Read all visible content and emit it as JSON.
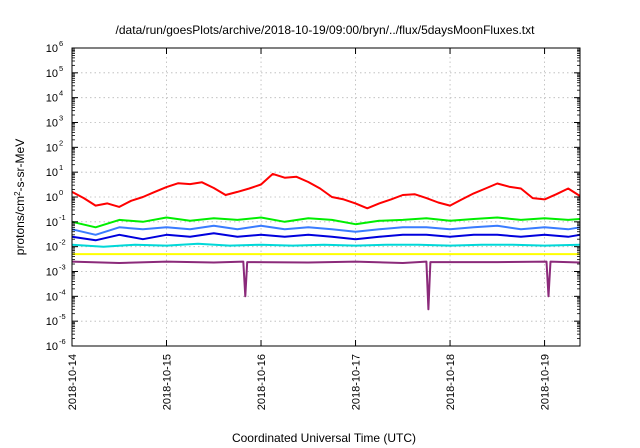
{
  "chart_data": {
    "type": "line",
    "title": "/data/run/goesPlots/archive/2018-10-19/09:00/bryn/../flux/5daysMoonFluxes.txt",
    "xlabel": "Coordinated Universal Time (UTC)",
    "ylabel": "protons/cm²-s-sr-MeV",
    "ylabel_parts": {
      "prefix": "protons/cm",
      "sup": "2",
      "suffix": "-s-sr-MeV"
    },
    "y_scale": "log",
    "ylim_exponents": [
      -6,
      6
    ],
    "y_ticks": [
      {
        "base": "10",
        "exp": "6"
      },
      {
        "base": "10",
        "exp": "5"
      },
      {
        "base": "10",
        "exp": "4"
      },
      {
        "base": "10",
        "exp": "3"
      },
      {
        "base": "10",
        "exp": "2"
      },
      {
        "base": "10",
        "exp": "1"
      },
      {
        "base": "10",
        "exp": "0"
      },
      {
        "base": "10",
        "exp": "-1"
      },
      {
        "base": "10",
        "exp": "-2"
      },
      {
        "base": "10",
        "exp": "-3"
      },
      {
        "base": "10",
        "exp": "-4"
      },
      {
        "base": "10",
        "exp": "-5"
      },
      {
        "base": "10",
        "exp": "-6"
      }
    ],
    "xlim": [
      "2018-10-14",
      "2018-10-19 09:00"
    ],
    "x_ticks": [
      "2018-10-14",
      "2018-10-15",
      "2018-10-16",
      "2018-10-17",
      "2018-10-18",
      "2018-10-19"
    ],
    "grid": true,
    "legend": "none",
    "series": [
      {
        "color": "#ff0000",
        "points": [
          [
            "2018-10-14 00:00",
            1.6
          ],
          [
            "2018-10-14 03:00",
            0.9
          ],
          [
            "2018-10-14 06:00",
            0.45
          ],
          [
            "2018-10-14 09:00",
            0.55
          ],
          [
            "2018-10-14 12:00",
            0.4
          ],
          [
            "2018-10-14 15:00",
            0.7
          ],
          [
            "2018-10-14 18:00",
            1.0
          ],
          [
            "2018-10-14 21:00",
            1.6
          ],
          [
            "2018-10-15 00:00",
            2.5
          ],
          [
            "2018-10-15 03:00",
            3.6
          ],
          [
            "2018-10-15 06:00",
            3.3
          ],
          [
            "2018-10-15 09:00",
            3.9
          ],
          [
            "2018-10-15 12:00",
            2.3
          ],
          [
            "2018-10-15 15:00",
            1.2
          ],
          [
            "2018-10-15 18:00",
            1.6
          ],
          [
            "2018-10-15 21:00",
            2.2
          ],
          [
            "2018-10-16 00:00",
            3.2
          ],
          [
            "2018-10-16 03:00",
            8.5
          ],
          [
            "2018-10-16 06:00",
            6.0
          ],
          [
            "2018-10-16 09:00",
            6.5
          ],
          [
            "2018-10-16 12:00",
            4.0
          ],
          [
            "2018-10-16 15:00",
            2.2
          ],
          [
            "2018-10-16 18:00",
            1.0
          ],
          [
            "2018-10-16 21:00",
            0.8
          ],
          [
            "2018-10-17 00:00",
            0.55
          ],
          [
            "2018-10-17 03:00",
            0.35
          ],
          [
            "2018-10-17 06:00",
            0.55
          ],
          [
            "2018-10-17 09:00",
            0.8
          ],
          [
            "2018-10-17 12:00",
            1.2
          ],
          [
            "2018-10-17 15:00",
            1.3
          ],
          [
            "2018-10-17 18:00",
            0.9
          ],
          [
            "2018-10-17 21:00",
            0.6
          ],
          [
            "2018-10-18 00:00",
            0.45
          ],
          [
            "2018-10-18 03:00",
            0.8
          ],
          [
            "2018-10-18 06:00",
            1.4
          ],
          [
            "2018-10-18 09:00",
            2.2
          ],
          [
            "2018-10-18 12:00",
            3.5
          ],
          [
            "2018-10-18 15:00",
            2.6
          ],
          [
            "2018-10-18 18:00",
            2.2
          ],
          [
            "2018-10-18 21:00",
            0.9
          ],
          [
            "2018-10-19 00:00",
            0.8
          ],
          [
            "2018-10-19 03:00",
            1.3
          ],
          [
            "2018-10-19 06:00",
            2.2
          ],
          [
            "2018-10-19 09:00",
            1.1
          ]
        ]
      },
      {
        "color": "#00ee00",
        "points": [
          [
            "2018-10-14 00:00",
            0.1
          ],
          [
            "2018-10-14 06:00",
            0.06
          ],
          [
            "2018-10-14 12:00",
            0.12
          ],
          [
            "2018-10-14 18:00",
            0.1
          ],
          [
            "2018-10-15 00:00",
            0.15
          ],
          [
            "2018-10-15 06:00",
            0.11
          ],
          [
            "2018-10-15 12:00",
            0.14
          ],
          [
            "2018-10-15 18:00",
            0.12
          ],
          [
            "2018-10-16 00:00",
            0.15
          ],
          [
            "2018-10-16 06:00",
            0.1
          ],
          [
            "2018-10-16 12:00",
            0.14
          ],
          [
            "2018-10-16 18:00",
            0.12
          ],
          [
            "2018-10-17 00:00",
            0.08
          ],
          [
            "2018-10-17 06:00",
            0.11
          ],
          [
            "2018-10-17 12:00",
            0.12
          ],
          [
            "2018-10-17 18:00",
            0.14
          ],
          [
            "2018-10-18 00:00",
            0.11
          ],
          [
            "2018-10-18 06:00",
            0.13
          ],
          [
            "2018-10-18 12:00",
            0.15
          ],
          [
            "2018-10-18 18:00",
            0.12
          ],
          [
            "2018-10-19 00:00",
            0.14
          ],
          [
            "2018-10-19 06:00",
            0.12
          ],
          [
            "2018-10-19 09:00",
            0.13
          ]
        ]
      },
      {
        "color": "#3a7cff",
        "points": [
          [
            "2018-10-14 00:00",
            0.05
          ],
          [
            "2018-10-14 06:00",
            0.03
          ],
          [
            "2018-10-14 12:00",
            0.06
          ],
          [
            "2018-10-14 18:00",
            0.05
          ],
          [
            "2018-10-15 00:00",
            0.06
          ],
          [
            "2018-10-15 06:00",
            0.05
          ],
          [
            "2018-10-15 12:00",
            0.07
          ],
          [
            "2018-10-15 18:00",
            0.05
          ],
          [
            "2018-10-16 00:00",
            0.07
          ],
          [
            "2018-10-16 06:00",
            0.05
          ],
          [
            "2018-10-16 12:00",
            0.06
          ],
          [
            "2018-10-16 18:00",
            0.05
          ],
          [
            "2018-10-17 00:00",
            0.04
          ],
          [
            "2018-10-17 06:00",
            0.05
          ],
          [
            "2018-10-17 12:00",
            0.06
          ],
          [
            "2018-10-17 18:00",
            0.06
          ],
          [
            "2018-10-18 00:00",
            0.05
          ],
          [
            "2018-10-18 06:00",
            0.06
          ],
          [
            "2018-10-18 12:00",
            0.07
          ],
          [
            "2018-10-18 18:00",
            0.05
          ],
          [
            "2018-10-19 00:00",
            0.06
          ],
          [
            "2018-10-19 06:00",
            0.05
          ],
          [
            "2018-10-19 09:00",
            0.06
          ]
        ]
      },
      {
        "color": "#0000dd",
        "points": [
          [
            "2018-10-14 00:00",
            0.025
          ],
          [
            "2018-10-14 06:00",
            0.018
          ],
          [
            "2018-10-14 12:00",
            0.03
          ],
          [
            "2018-10-14 18:00",
            0.02
          ],
          [
            "2018-10-15 00:00",
            0.03
          ],
          [
            "2018-10-15 06:00",
            0.025
          ],
          [
            "2018-10-15 12:00",
            0.035
          ],
          [
            "2018-10-15 18:00",
            0.025
          ],
          [
            "2018-10-16 00:00",
            0.03
          ],
          [
            "2018-10-16 06:00",
            0.025
          ],
          [
            "2018-10-16 12:00",
            0.03
          ],
          [
            "2018-10-16 18:00",
            0.025
          ],
          [
            "2018-10-17 00:00",
            0.02
          ],
          [
            "2018-10-17 06:00",
            0.025
          ],
          [
            "2018-10-17 12:00",
            0.03
          ],
          [
            "2018-10-17 18:00",
            0.03
          ],
          [
            "2018-10-18 00:00",
            0.025
          ],
          [
            "2018-10-18 06:00",
            0.03
          ],
          [
            "2018-10-18 12:00",
            0.03
          ],
          [
            "2018-10-18 18:00",
            0.025
          ],
          [
            "2018-10-19 00:00",
            0.03
          ],
          [
            "2018-10-19 06:00",
            0.025
          ],
          [
            "2018-10-19 09:00",
            0.03
          ]
        ]
      },
      {
        "color": "#00d8d8",
        "points": [
          [
            "2018-10-14 00:00",
            0.012
          ],
          [
            "2018-10-14 08:00",
            0.01
          ],
          [
            "2018-10-14 16:00",
            0.012
          ],
          [
            "2018-10-15 00:00",
            0.011
          ],
          [
            "2018-10-15 08:00",
            0.013
          ],
          [
            "2018-10-15 16:00",
            0.011
          ],
          [
            "2018-10-16 00:00",
            0.012
          ],
          [
            "2018-10-16 08:00",
            0.011
          ],
          [
            "2018-10-16 16:00",
            0.012
          ],
          [
            "2018-10-17 00:00",
            0.011
          ],
          [
            "2018-10-17 08:00",
            0.012
          ],
          [
            "2018-10-17 16:00",
            0.012
          ],
          [
            "2018-10-18 00:00",
            0.011
          ],
          [
            "2018-10-18 08:00",
            0.012
          ],
          [
            "2018-10-18 16:00",
            0.012
          ],
          [
            "2018-10-19 00:00",
            0.011
          ],
          [
            "2018-10-19 09:00",
            0.012
          ]
        ]
      },
      {
        "color": "#ffff00",
        "points": [
          [
            "2018-10-14 00:00",
            0.005
          ],
          [
            "2018-10-15 00:00",
            0.005
          ],
          [
            "2018-10-16 00:00",
            0.005
          ],
          [
            "2018-10-17 00:00",
            0.005
          ],
          [
            "2018-10-18 00:00",
            0.005
          ],
          [
            "2018-10-19 00:00",
            0.005
          ],
          [
            "2018-10-19 09:00",
            0.005
          ]
        ]
      },
      {
        "color": "#8b2a7a",
        "points": [
          [
            "2018-10-14 00:00",
            0.0025
          ],
          [
            "2018-10-14 12:00",
            0.0022
          ],
          [
            "2018-10-15 00:00",
            0.0025
          ],
          [
            "2018-10-15 12:00",
            0.0023
          ],
          [
            "2018-10-15 19:30",
            0.0025
          ],
          [
            "2018-10-15 20:00",
            0.0001
          ],
          [
            "2018-10-15 20:30",
            0.0024
          ],
          [
            "2018-10-16 12:00",
            0.0023
          ],
          [
            "2018-10-17 00:00",
            0.0025
          ],
          [
            "2018-10-17 12:00",
            0.0022
          ],
          [
            "2018-10-17 18:00",
            0.0025
          ],
          [
            "2018-10-17 18:30",
            3e-05
          ],
          [
            "2018-10-17 19:00",
            0.0024
          ],
          [
            "2018-10-18 12:00",
            0.0024
          ],
          [
            "2018-10-19 00:30",
            0.0025
          ],
          [
            "2018-10-19 01:00",
            0.0001
          ],
          [
            "2018-10-19 01:30",
            0.0025
          ],
          [
            "2018-10-19 09:00",
            0.0023
          ]
        ]
      }
    ]
  }
}
